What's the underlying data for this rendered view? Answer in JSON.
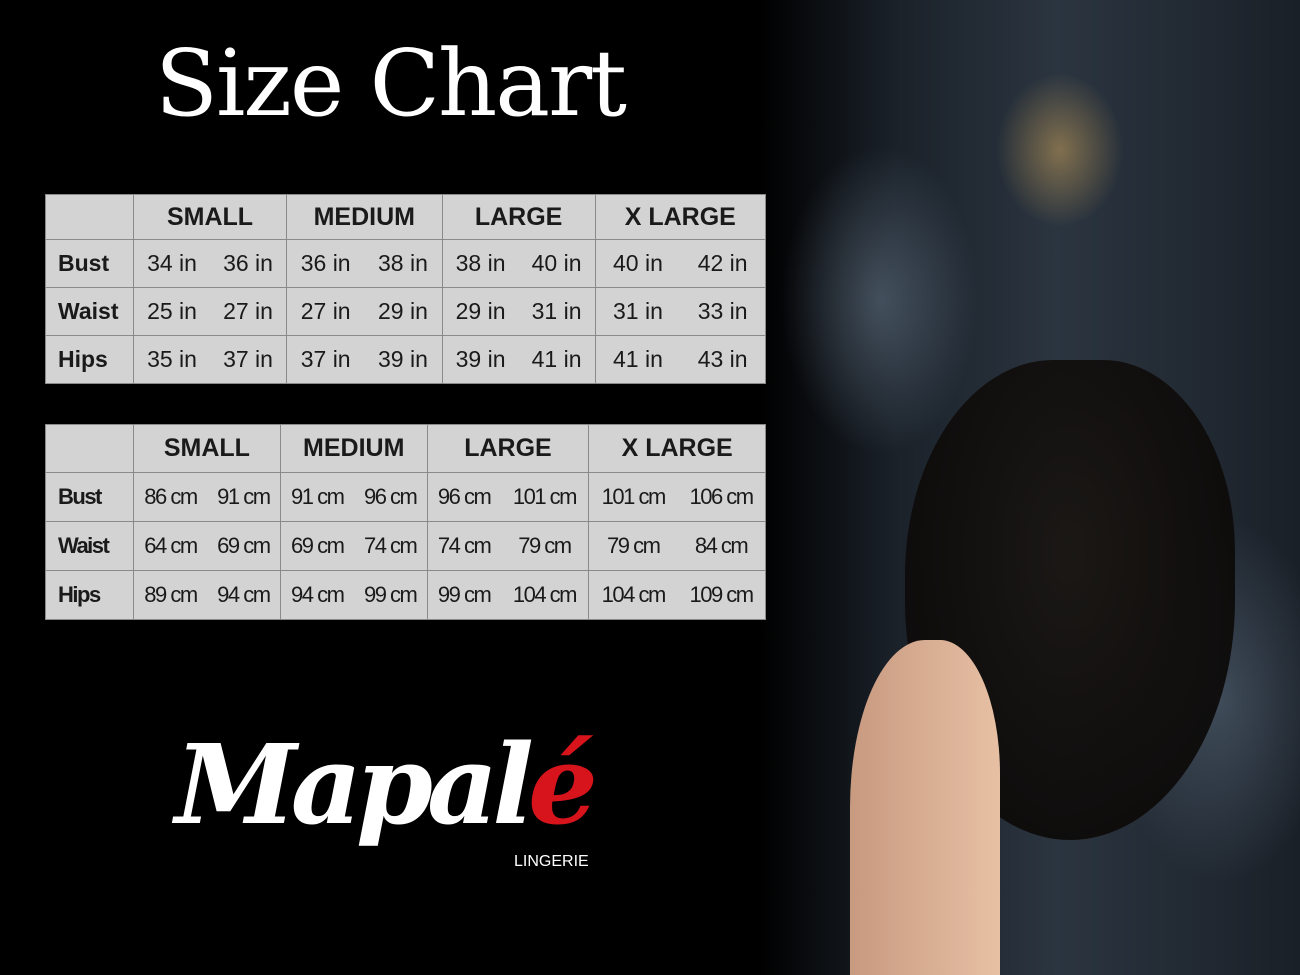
{
  "title": "Size Chart",
  "sizes": [
    "SMALL",
    "MEDIUM",
    "LARGE",
    "X LARGE"
  ],
  "tables": [
    {
      "unit": "in",
      "rows": [
        {
          "label": "Bust",
          "values": [
            "34 in",
            "36 in",
            "36 in",
            "38 in",
            "38 in",
            "40 in",
            "40 in",
            "42 in"
          ]
        },
        {
          "label": "Waist",
          "values": [
            "25 in",
            "27 in",
            "27 in",
            "29 in",
            "29 in",
            "31 in",
            "31 in",
            "33 in"
          ]
        },
        {
          "label": "Hips",
          "values": [
            "35 in",
            "37 in",
            "37 in",
            "39 in",
            "39 in",
            "41 in",
            "41 in",
            "43 in"
          ]
        }
      ]
    },
    {
      "unit": "cm",
      "rows": [
        {
          "label": "Bust",
          "values": [
            "86 cm",
            "91 cm",
            "91 cm",
            "96 cm",
            "96 cm",
            "101 cm",
            "101 cm",
            "106 cm"
          ]
        },
        {
          "label": "Waist",
          "values": [
            "64 cm",
            "69 cm",
            "69 cm",
            "74 cm",
            "74 cm",
            "79  cm",
            "79 cm",
            "84 cm"
          ]
        },
        {
          "label": "Hips",
          "values": [
            "89 cm",
            "94 cm",
            "94 cm",
            "99 cm",
            "99 cm",
            "104 cm",
            "104 cm",
            "109 cm"
          ]
        }
      ]
    }
  ],
  "brand": {
    "name_main": "Mapal",
    "name_accent": "é",
    "subtitle": "LINGERIE",
    "accent_color": "#d7141c"
  }
}
